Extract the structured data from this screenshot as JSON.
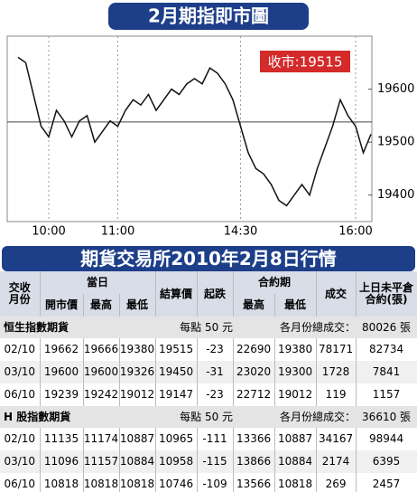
{
  "chart_data": {
    "type": "line",
    "title": "2月期指即市圖",
    "annotation": "收市:19515",
    "categories": [
      "",
      "",
      "",
      "",
      "10:00",
      "",
      "",
      "",
      "",
      "",
      "",
      "",
      "",
      "11:00",
      "",
      "",
      "",
      "",
      "",
      "",
      "",
      "",
      "",
      "",
      "",
      "",
      "",
      "",
      "",
      "14:30",
      "",
      "",
      "",
      "",
      "",
      "",
      "",
      "",
      "",
      "",
      "",
      "",
      "",
      "",
      "16:00",
      "",
      ""
    ],
    "values": [
      19660,
      19650,
      19590,
      19530,
      19510,
      19560,
      19540,
      19510,
      19540,
      19550,
      19500,
      19520,
      19540,
      19530,
      19560,
      19580,
      19570,
      19590,
      19560,
      19580,
      19600,
      19590,
      19610,
      19620,
      19610,
      19640,
      19630,
      19610,
      19580,
      19530,
      19480,
      19450,
      19440,
      19420,
      19390,
      19380,
      19400,
      19420,
      19400,
      19450,
      19490,
      19530,
      19580,
      19550,
      19530,
      19480,
      19515
    ],
    "reference": 19538,
    "color": "#111111",
    "ylim": [
      19350,
      19700
    ],
    "yticks": [
      19400,
      19500,
      19600
    ]
  },
  "table": {
    "title": "期貨交易所2010年2月8日行情",
    "header_top": [
      "交收\n月份",
      "當日",
      "結算價",
      "起跌",
      "合約期",
      "成交",
      "上日未平倉\n合約(張)"
    ],
    "header_sub": [
      "開市價",
      "最高",
      "最低",
      "最高",
      "最低"
    ],
    "sections": [
      {
        "name": "恒生指數期貨",
        "unit": "每點 50 元",
        "total_label": "各月份總成交：",
        "total": "80026 張",
        "rows": [
          [
            "02/10",
            19662,
            19666,
            19380,
            19515,
            -23,
            22690,
            19380,
            78171,
            82734
          ],
          [
            "03/10",
            19600,
            19600,
            19326,
            19450,
            -31,
            23020,
            19300,
            1728,
            7841
          ],
          [
            "06/10",
            19239,
            19242,
            19012,
            19147,
            -23,
            22712,
            19012,
            119,
            1157
          ]
        ]
      },
      {
        "name": "H 股指數期貨",
        "unit": "每點 50 元",
        "total_label": "各月份總成交：",
        "total": "36610 張",
        "rows": [
          [
            "02/10",
            11135,
            11174,
            10887,
            10965,
            -111,
            13366,
            10887,
            34167,
            98944
          ],
          [
            "03/10",
            11096,
            11157,
            10884,
            10958,
            -115,
            13866,
            10884,
            2174,
            6395
          ],
          [
            "06/10",
            10818,
            10818,
            10818,
            10746,
            -109,
            13566,
            10818,
            269,
            2457
          ]
        ]
      }
    ]
  }
}
